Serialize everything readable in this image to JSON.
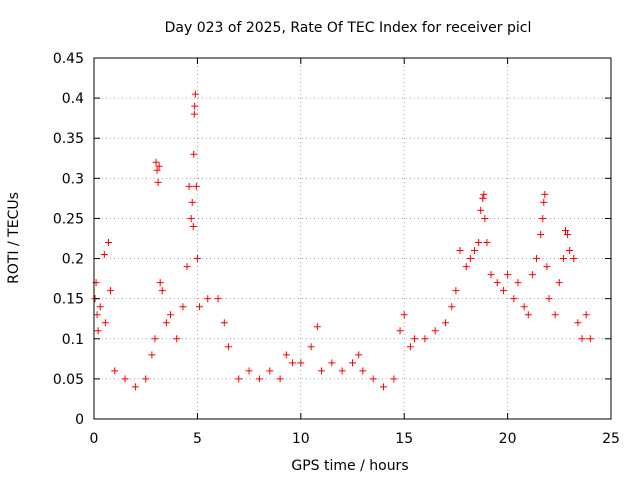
{
  "chart_data": {
    "type": "scatter",
    "title": "Day 023 of 2025, Rate Of TEC Index for receiver picl",
    "xlabel": "GPS time / hours",
    "ylabel": "ROTI / TECUs",
    "xlim": [
      0,
      25
    ],
    "ylim": [
      0,
      0.45
    ],
    "xticks": [
      0,
      5,
      10,
      15,
      20,
      25
    ],
    "xtick_labels": [
      "0",
      "5",
      "10",
      "15",
      "20",
      "25"
    ],
    "yticks": [
      0,
      0.05,
      0.1,
      0.15,
      0.2,
      0.25,
      0.3,
      0.35,
      0.4,
      0.45
    ],
    "ytick_labels": [
      "0",
      "0.05",
      "0.1",
      "0.15",
      "0.2",
      "0.25",
      "0.3",
      "0.35",
      "0.4",
      "0.45"
    ],
    "grid": true,
    "marker": "+",
    "color": "#ff0000",
    "series": [
      {
        "points": [
          [
            0.05,
            0.15
          ],
          [
            0.1,
            0.17
          ],
          [
            0.15,
            0.13
          ],
          [
            0.2,
            0.11
          ],
          [
            0.3,
            0.14
          ],
          [
            0.5,
            0.205
          ],
          [
            0.55,
            0.12
          ],
          [
            0.7,
            0.22
          ],
          [
            0.8,
            0.16
          ],
          [
            1.0,
            0.06
          ],
          [
            1.5,
            0.05
          ],
          [
            2.0,
            0.04
          ],
          [
            2.5,
            0.05
          ],
          [
            2.8,
            0.08
          ],
          [
            2.95,
            0.1
          ],
          [
            3.0,
            0.32
          ],
          [
            3.05,
            0.31
          ],
          [
            3.1,
            0.295
          ],
          [
            3.15,
            0.315
          ],
          [
            3.2,
            0.17
          ],
          [
            3.3,
            0.16
          ],
          [
            3.5,
            0.12
          ],
          [
            3.7,
            0.13
          ],
          [
            4.0,
            0.1
          ],
          [
            4.3,
            0.14
          ],
          [
            4.5,
            0.19
          ],
          [
            4.6,
            0.29
          ],
          [
            4.7,
            0.25
          ],
          [
            4.75,
            0.27
          ],
          [
            4.8,
            0.24
          ],
          [
            4.82,
            0.33
          ],
          [
            4.85,
            0.38
          ],
          [
            4.87,
            0.39
          ],
          [
            4.9,
            0.405
          ],
          [
            4.95,
            0.29
          ],
          [
            5.0,
            0.2
          ],
          [
            5.1,
            0.14
          ],
          [
            5.5,
            0.15
          ],
          [
            6.0,
            0.15
          ],
          [
            6.3,
            0.12
          ],
          [
            6.5,
            0.09
          ],
          [
            7.0,
            0.05
          ],
          [
            7.5,
            0.06
          ],
          [
            8.0,
            0.05
          ],
          [
            8.5,
            0.06
          ],
          [
            9.0,
            0.05
          ],
          [
            9.3,
            0.08
          ],
          [
            9.6,
            0.07
          ],
          [
            10.0,
            0.07
          ],
          [
            10.5,
            0.09
          ],
          [
            10.8,
            0.115
          ],
          [
            11.0,
            0.06
          ],
          [
            11.5,
            0.07
          ],
          [
            12.0,
            0.06
          ],
          [
            12.5,
            0.07
          ],
          [
            12.8,
            0.08
          ],
          [
            13.0,
            0.06
          ],
          [
            13.5,
            0.05
          ],
          [
            14.0,
            0.04
          ],
          [
            14.5,
            0.05
          ],
          [
            14.8,
            0.11
          ],
          [
            15.0,
            0.13
          ],
          [
            15.3,
            0.09
          ],
          [
            15.5,
            0.1
          ],
          [
            16.0,
            0.1
          ],
          [
            16.5,
            0.11
          ],
          [
            17.0,
            0.12
          ],
          [
            17.3,
            0.14
          ],
          [
            17.5,
            0.16
          ],
          [
            17.7,
            0.21
          ],
          [
            18.0,
            0.19
          ],
          [
            18.2,
            0.2
          ],
          [
            18.4,
            0.21
          ],
          [
            18.6,
            0.22
          ],
          [
            18.7,
            0.26
          ],
          [
            18.8,
            0.275
          ],
          [
            18.85,
            0.28
          ],
          [
            18.9,
            0.25
          ],
          [
            19.0,
            0.22
          ],
          [
            19.2,
            0.18
          ],
          [
            19.5,
            0.17
          ],
          [
            19.8,
            0.16
          ],
          [
            20.0,
            0.18
          ],
          [
            20.3,
            0.15
          ],
          [
            20.5,
            0.17
          ],
          [
            20.8,
            0.14
          ],
          [
            21.0,
            0.13
          ],
          [
            21.2,
            0.18
          ],
          [
            21.4,
            0.2
          ],
          [
            21.6,
            0.23
          ],
          [
            21.7,
            0.25
          ],
          [
            21.75,
            0.27
          ],
          [
            21.8,
            0.28
          ],
          [
            21.9,
            0.19
          ],
          [
            22.0,
            0.15
          ],
          [
            22.3,
            0.13
          ],
          [
            22.5,
            0.17
          ],
          [
            22.7,
            0.2
          ],
          [
            22.8,
            0.235
          ],
          [
            22.9,
            0.23
          ],
          [
            23.0,
            0.21
          ],
          [
            23.2,
            0.2
          ],
          [
            23.4,
            0.12
          ],
          [
            23.6,
            0.1
          ],
          [
            23.8,
            0.13
          ],
          [
            24.0,
            0.1
          ]
        ]
      }
    ]
  }
}
